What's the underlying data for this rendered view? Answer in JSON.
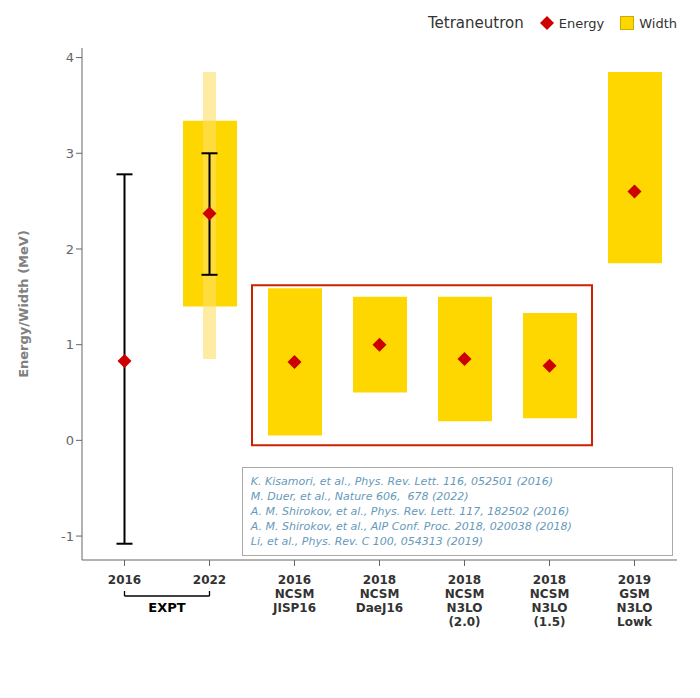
{
  "chart_data": {
    "type": "range_bar",
    "ylabel": "Energy/Width (MeV)",
    "ylim": [
      -1.25,
      4.1
    ],
    "yticks": [
      -1,
      0,
      1,
      2,
      3,
      4
    ],
    "categories": [
      "2016",
      "2022",
      "2016\nNCSM\nJISP16",
      "2018\nNCSM\nDaeJ16",
      "2018\nNCSM\nN3LO\n(2.0)",
      "2018\nNCSM\nN3LO\n(1.5)",
      "2019\nGSM\nN3LO\nLowk"
    ],
    "legend": "upper right",
    "legend_title": "Tetraneutron",
    "series": [
      {
        "name": "Energy",
        "type": "scatter",
        "marker": "diamond",
        "color": "#CC0000",
        "values": [
          0.83,
          2.37,
          0.82,
          1.0,
          0.85,
          0.78,
          2.6
        ],
        "error_bars": [
          {
            "low": -1.08,
            "high": 2.78
          },
          {
            "low": 1.73,
            "high": 3.0
          },
          null,
          null,
          null,
          null,
          null
        ]
      },
      {
        "name": "Width",
        "type": "bar",
        "color": "#FFD700",
        "values": [
          null,
          [
            1.4,
            3.34
          ],
          [
            0.05,
            1.59
          ],
          [
            0.5,
            1.5
          ],
          [
            0.2,
            1.5
          ],
          [
            0.23,
            1.33
          ],
          [
            1.85,
            3.85
          ]
        ],
        "extent": [
          null,
          [
            0.85,
            3.85
          ],
          null,
          null,
          null,
          null,
          null
        ],
        "extent_color": "#FFE066"
      }
    ],
    "boxes": [
      {
        "from": "2016\nNCSM\nJISP16",
        "to": "2018\nNCSM\nN3LO\n(1.5)",
        "y1": -0.05,
        "y2": 1.62,
        "color": "#CC2200"
      }
    ],
    "groups": [
      {
        "label": "EXPT",
        "from": "2016",
        "to": "2022"
      }
    ],
    "citations": [
      "K. Kisamori, et al., Phys. Rev. Lett. 116, 052501 (2016)",
      "M. Duer, et al., Nature 606,  678 (2022)",
      "A. M. Shirokov, et al., Phys. Rev. Lett. 117, 182502 (2016)",
      "A. M. Shirokov, et al., AIP Conf. Proc. 2018, 020038 (2018)",
      "Li, et al., Phys. Rev. C 100, 054313 (2019)"
    ],
    "citation_color": "#6699BB"
  }
}
